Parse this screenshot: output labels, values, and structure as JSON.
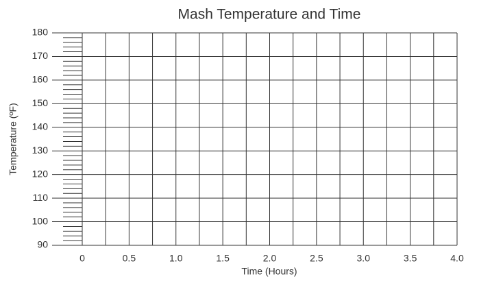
{
  "chart_data": {
    "type": "line",
    "title": "Mash Temperature and Time",
    "x_label": "Time (Hours)",
    "y_label": "Temperature (ºF)",
    "xlim": [
      0,
      4
    ],
    "xticks": [
      0,
      0.5,
      {
        "value": 1,
        "label": "1.0"
      },
      1.5,
      {
        "value": 2,
        "label": "2.0"
      },
      2.5,
      {
        "value": 3,
        "label": "3.0"
      },
      3.5,
      {
        "value": 4,
        "label": "4.0"
      }
    ],
    "x_minor_ticks": [
      0.25,
      0.75,
      1.25,
      1.75,
      2.25,
      2.75,
      3.25,
      3.75
    ],
    "ylim": [
      90,
      180
    ],
    "yticks": [
      90,
      100,
      110,
      120,
      130,
      140,
      150,
      160,
      170,
      180
    ],
    "y_minor_ticks": [
      92,
      94,
      96,
      98,
      102,
      104,
      106,
      108,
      112,
      114,
      116,
      118,
      122,
      124,
      126,
      128,
      132,
      134,
      136,
      138,
      142,
      144,
      146,
      148,
      152,
      154,
      156,
      158,
      162,
      164,
      166,
      168,
      172,
      174,
      176,
      178
    ],
    "grid": true,
    "series": []
  }
}
